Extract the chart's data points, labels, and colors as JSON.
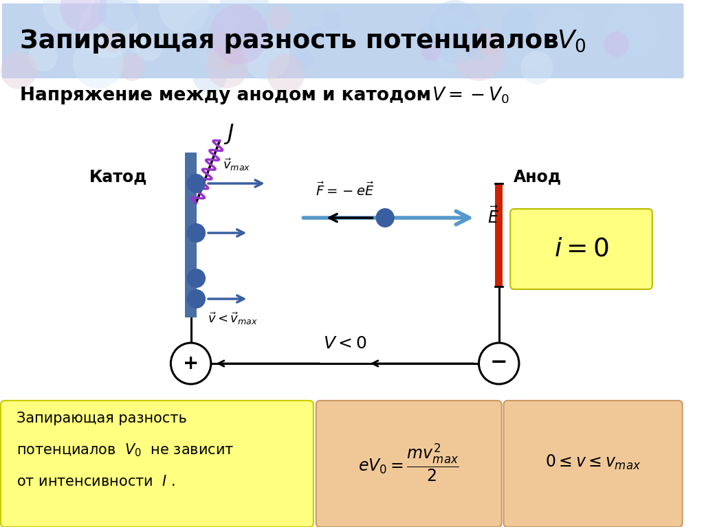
{
  "title_main": "Запирающая разность потенциалов ",
  "title_V0": "$V_0$",
  "subtitle_text": "Напряжение между анодом и катодом",
  "subtitle_formula": "$V = -V_0$",
  "cathode_label": "Катод",
  "anode_label": "Анод",
  "bg_color": "#ffffff",
  "header_bg": "#c0d4ee",
  "yellow_box_color": "#ffff80",
  "salmon_box_color": "#f0c898",
  "blue_plate_color": "#4a6fa5",
  "red_plate_color": "#cc2200",
  "electron_color": "#3a5fa0",
  "arrow_color": "#3a5fa0",
  "wave_color": "#9933cc",
  "i0_text": "$i = 0$",
  "v_lt_0": "$V < 0$",
  "F_eq": "$\\vec{F} = -e\\vec{E}$",
  "E_label": "$\\vec{E}$",
  "J_label": "$J$",
  "vmax_label": "$\\vec{v}_{max}$",
  "vlessmax_label": "$\\vec{v} < \\vec{v}_{max}$",
  "yellow_text_line1": "Запирающая разность",
  "yellow_text_line2": "потенциалов  $V_0$  не зависит",
  "yellow_text_line3": "от интенсивности  $I$ .",
  "formula1_text": "$eV_0 = \\dfrac{mv^2_{max}}{2}$",
  "formula2_text": "$0 \\leq v \\leq v_{max}$"
}
